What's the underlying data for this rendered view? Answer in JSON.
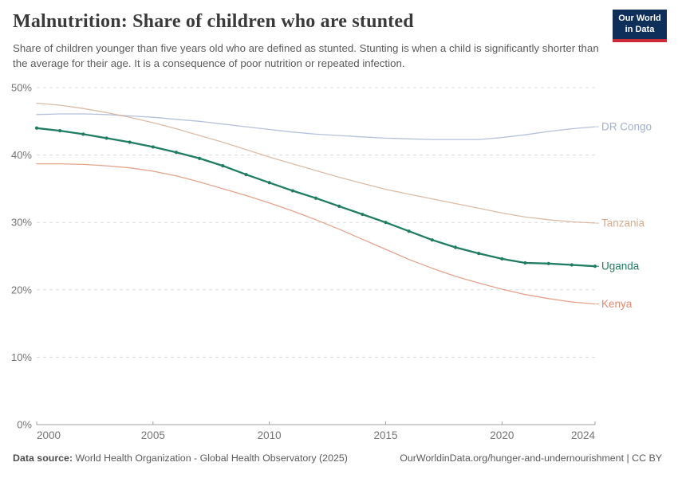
{
  "header": {
    "title": "Malnutrition: Share of children who are stunted",
    "subtitle": "Share of children younger than five years old who are defined as stunted. Stunting is when a child is significantly shorter than the average for their age. It is a consequence of poor nutrition or repeated infection.",
    "logo": {
      "line1": "Our World",
      "line2": "in Data",
      "bg_color": "#0e2f5a",
      "accent_color": "#cc2a36"
    }
  },
  "chart_data": {
    "type": "line",
    "title": "Malnutrition: Share of children who are stunted",
    "x": [
      2000,
      2001,
      2002,
      2003,
      2004,
      2005,
      2006,
      2007,
      2008,
      2009,
      2010,
      2011,
      2012,
      2013,
      2014,
      2015,
      2016,
      2017,
      2018,
      2019,
      2020,
      2021,
      2022,
      2023,
      2024
    ],
    "series": [
      {
        "name": "DR Congo",
        "color": "#a2b1d1",
        "muted": true,
        "markers": false,
        "values": [
          46.0,
          46.1,
          46.1,
          46.0,
          45.8,
          45.6,
          45.3,
          45.0,
          44.6,
          44.2,
          43.8,
          43.4,
          43.1,
          42.9,
          42.7,
          42.5,
          42.4,
          42.3,
          42.3,
          42.3,
          42.6,
          43.0,
          43.5,
          43.9,
          44.2
        ]
      },
      {
        "name": "Tanzania",
        "color": "#d3ab90",
        "muted": true,
        "markers": false,
        "values": [
          47.7,
          47.4,
          46.9,
          46.3,
          45.6,
          44.8,
          43.9,
          42.9,
          41.9,
          40.8,
          39.7,
          38.7,
          37.7,
          36.7,
          35.8,
          34.9,
          34.2,
          33.5,
          32.8,
          32.1,
          31.4,
          30.8,
          30.4,
          30.1,
          29.9
        ]
      },
      {
        "name": "Kenya",
        "color": "#dd8c70",
        "muted": true,
        "markers": false,
        "values": [
          38.7,
          38.7,
          38.6,
          38.4,
          38.1,
          37.6,
          36.9,
          36.0,
          35.0,
          34.0,
          32.9,
          31.7,
          30.4,
          29.0,
          27.5,
          26.0,
          24.5,
          23.2,
          22.0,
          21.0,
          20.1,
          19.3,
          18.7,
          18.2,
          17.9
        ]
      },
      {
        "name": "Uganda",
        "color": "#1e7d62",
        "muted": false,
        "markers": true,
        "values": [
          44.0,
          43.6,
          43.1,
          42.5,
          41.9,
          41.2,
          40.4,
          39.5,
          38.4,
          37.1,
          35.9,
          34.7,
          33.6,
          32.4,
          31.2,
          30.0,
          28.7,
          27.4,
          26.3,
          25.4,
          24.6,
          24.0,
          23.9,
          23.7,
          23.5
        ]
      }
    ],
    "xlim": [
      2000,
      2024
    ],
    "ylim": [
      0,
      50
    ],
    "yticks": [
      0,
      10,
      20,
      30,
      40,
      50
    ],
    "ytick_suffix": "%",
    "xticks": [
      2000,
      2005,
      2010,
      2015,
      2020,
      2024
    ],
    "grid": "horizontal-dashed",
    "legend_position": "right-of-line-ends",
    "axis_text_color": "#757575",
    "gridline_color": "#dcdcdc",
    "axis_line_color": "#a0a0a0"
  },
  "footer": {
    "datasource_label": "Data source:",
    "datasource_text": " World Health Organization - Global Health Observatory (2025)",
    "link_text": "OurWorldinData.org/hunger-and-undernourishment | CC BY"
  }
}
